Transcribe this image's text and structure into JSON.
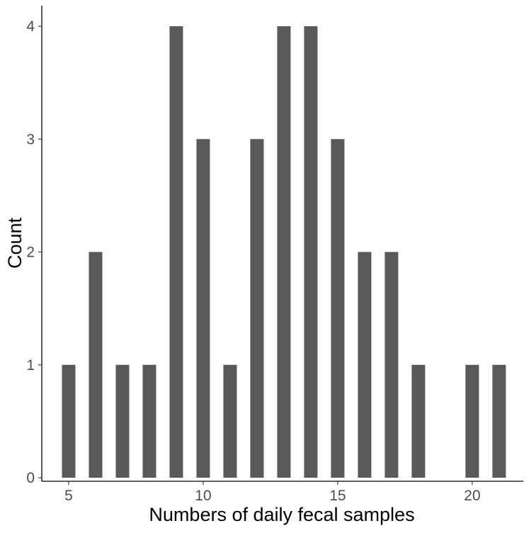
{
  "chart_data": {
    "type": "bar",
    "title": "",
    "xlabel": "Numbers of daily fecal samples",
    "ylabel": "Count",
    "x": [
      5,
      6,
      7,
      8,
      9,
      10,
      11,
      12,
      13,
      14,
      15,
      16,
      17,
      18,
      20,
      21
    ],
    "values": [
      1,
      2,
      1,
      1,
      4,
      3,
      1,
      3,
      4,
      4,
      3,
      2,
      2,
      1,
      1,
      1
    ],
    "xlim": [
      4.0,
      21.9
    ],
    "ylim": [
      0,
      4.2
    ],
    "xticks": [
      5,
      10,
      15,
      20
    ],
    "xtick_labels": [
      "5",
      "10",
      "15",
      "20"
    ],
    "yticks": [
      0,
      1,
      2,
      3,
      4
    ],
    "ytick_labels": [
      "0",
      "1",
      "2",
      "3",
      "4"
    ],
    "grid": false,
    "bar_color": "#595959",
    "axis_color": "#000000",
    "tick_label_color": "#4d4d4d"
  }
}
